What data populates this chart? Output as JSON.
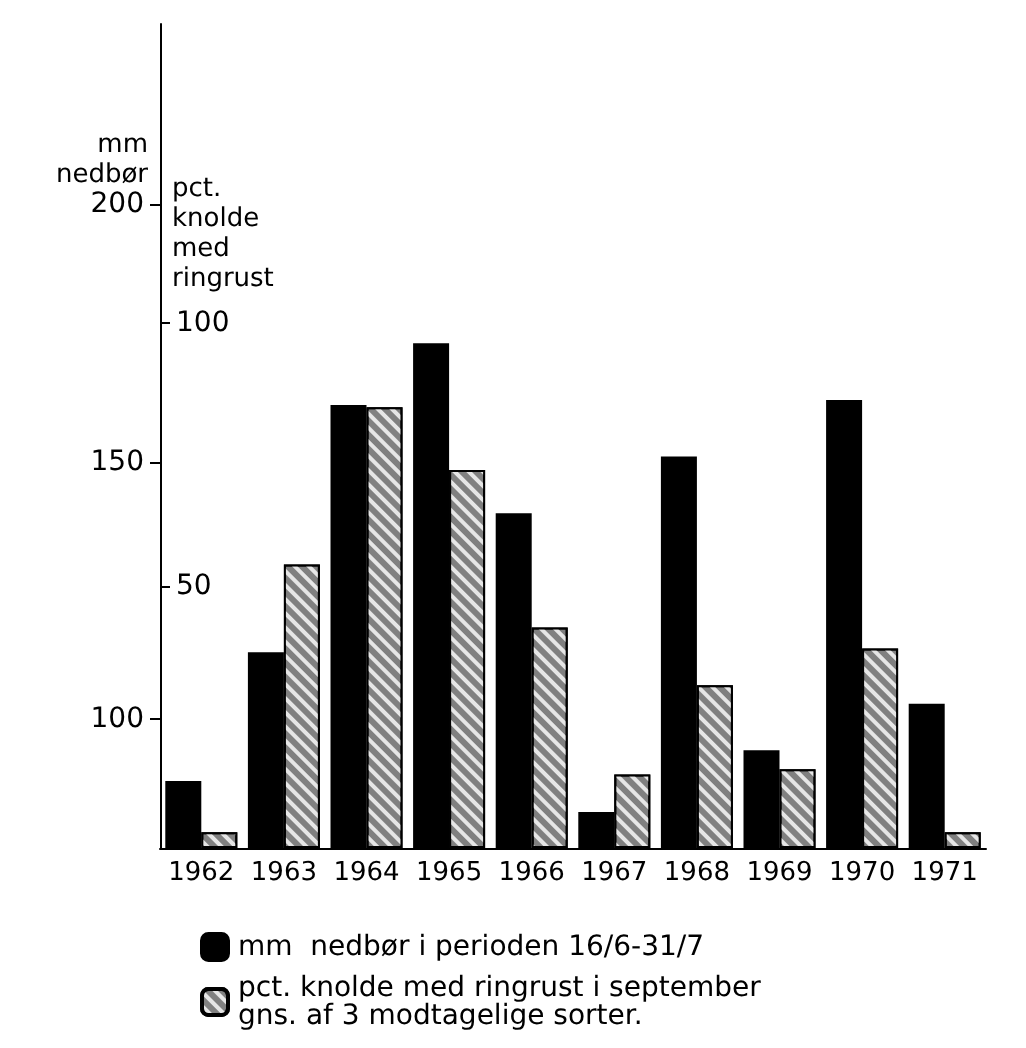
{
  "chart_data": {
    "type": "bar",
    "categories": [
      "1962",
      "1963",
      "1964",
      "1965",
      "1966",
      "1967",
      "1968",
      "1969",
      "1970",
      "1971"
    ],
    "series": [
      {
        "name": "mm  nedbør i perioden 16/6-31/7",
        "color": "#000000",
        "values": [
          88,
          113,
          161,
          173,
          140,
          82,
          151,
          94,
          162,
          103
        ]
      },
      {
        "name": "pct. knolde med ringrust i september\ngns. af 3 modtagelige sorter.",
        "color": "#808080",
        "axis": "y2",
        "values": [
          3,
          54,
          84,
          72,
          42,
          14,
          31,
          15,
          38,
          3
        ]
      }
    ],
    "ylabel": "mm\nnedbør",
    "y2label": "pct.\nknolde\nmed\nringrust",
    "ylim": [
      75,
      235
    ],
    "yticks": [
      100,
      150,
      200
    ],
    "y2lim": [
      0,
      157
    ],
    "y2ticks": [
      50,
      100
    ],
    "legend": "bottom",
    "grid": false
  }
}
